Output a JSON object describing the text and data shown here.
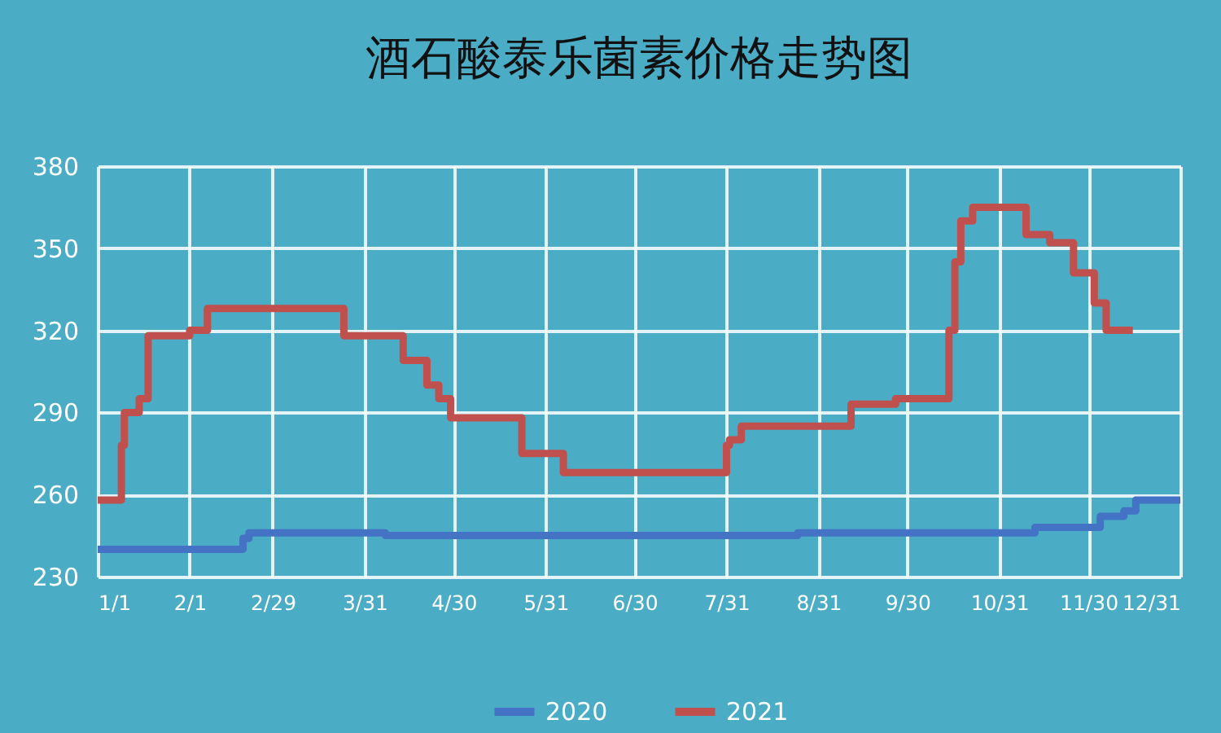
{
  "chart_data": {
    "type": "step",
    "title": "酒石酸泰乐菌素价格走势图",
    "xlim": [
      "--01-01",
      "--12-31"
    ],
    "xticks": [
      {
        "value": "--01-01",
        "label": "1/1"
      },
      {
        "value": "--02-01",
        "label": "2/1"
      },
      {
        "value": "--02-29",
        "label": "2/29"
      },
      {
        "value": "--03-31",
        "label": "3/31"
      },
      {
        "value": "--04-30",
        "label": "4/30"
      },
      {
        "value": "--05-31",
        "label": "5/31"
      },
      {
        "value": "--06-30",
        "label": "6/30"
      },
      {
        "value": "--07-31",
        "label": "7/31"
      },
      {
        "value": "--08-31",
        "label": "8/31"
      },
      {
        "value": "--09-30",
        "label": "9/30"
      },
      {
        "value": "--10-31",
        "label": "10/31"
      },
      {
        "value": "--11-30",
        "label": "11/30"
      },
      {
        "value": "--12-31",
        "label": "12/31"
      }
    ],
    "ylim": [
      230,
      380
    ],
    "yticks": [
      230,
      260,
      290,
      320,
      350,
      380
    ],
    "grid": true,
    "legend": "bottom",
    "series": [
      {
        "name": "2020",
        "color": "#4472c4",
        "x": [
          "--01-01",
          "--02-19",
          "--02-21",
          "--04-07",
          "--08-24",
          "--11-12",
          "--12-04",
          "--12-12",
          "--12-16",
          "--12-31"
        ],
        "values": [
          240,
          244,
          246,
          245,
          246,
          248,
          252,
          254,
          258,
          258
        ]
      },
      {
        "name": "2021",
        "color": "#c0504d",
        "x": [
          "--01-01",
          "--01-09",
          "--01-10",
          "--01-15",
          "--01-18",
          "--02-01",
          "--02-07",
          "--03-24",
          "--04-13",
          "--04-21",
          "--04-25",
          "--04-29",
          "--05-23",
          "--06-06",
          "--07-31",
          "--08-01",
          "--08-05",
          "--09-11",
          "--09-26",
          "--10-14",
          "--10-16",
          "--10-18",
          "--10-22",
          "--11-09",
          "--11-17",
          "--11-25",
          "--12-02",
          "--12-06",
          "--12-15"
        ],
        "values": [
          258,
          278,
          290,
          295,
          318,
          320,
          328,
          318,
          309,
          300,
          295,
          288,
          275,
          268,
          278,
          280,
          285,
          293,
          295,
          320,
          345,
          360,
          365,
          355,
          352,
          341,
          330,
          320,
          320
        ]
      }
    ]
  }
}
